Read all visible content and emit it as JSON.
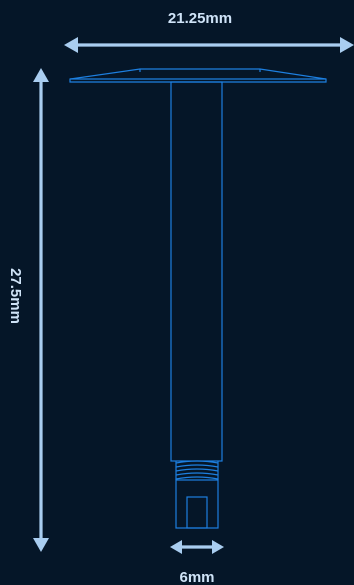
{
  "dimensions": {
    "width_label": "21.25mm",
    "height_label": "27.5mm",
    "shaft_label": "6mm"
  },
  "colors": {
    "background": "#051628",
    "dimension_lines": "#a9cdf0",
    "part_outline": "#1d7fe0",
    "label_text": "#cfe3f7"
  }
}
